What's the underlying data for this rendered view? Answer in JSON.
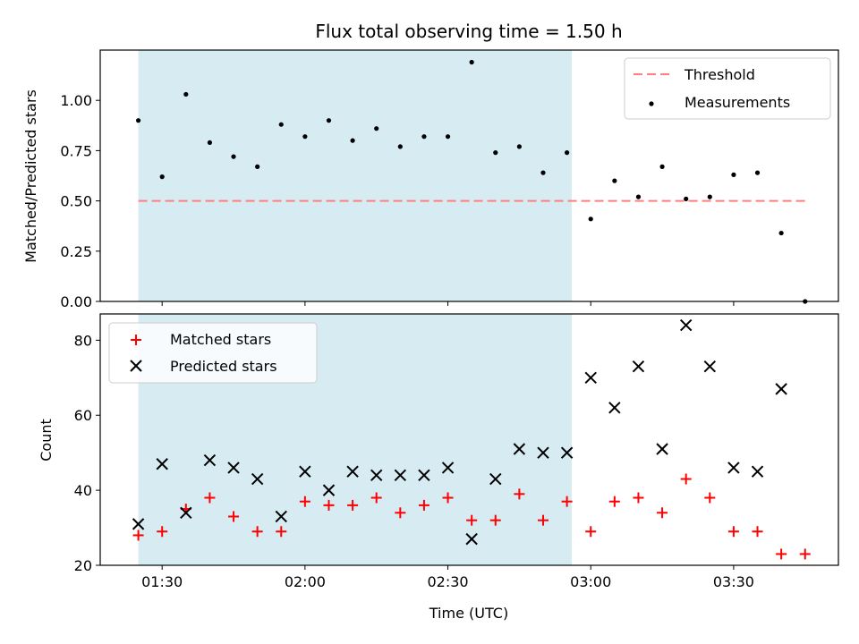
{
  "chart_data": [
    {
      "type": "scatter",
      "title": "Flux total observing time = 1.50 h",
      "xlabel": "",
      "ylabel": "Matched/Predicted stars",
      "ylim": [
        0,
        1.25
      ],
      "yticks": [
        "0.00",
        "0.25",
        "0.50",
        "0.75",
        "1.00"
      ],
      "shaded_region": {
        "start": "01:25",
        "end": "02:56",
        "color": "#add8e6"
      },
      "threshold": {
        "name": "Threshold",
        "value": 0.5,
        "x_start": "01:25",
        "x_end": "03:45",
        "color": "#ff7f7f",
        "style": "dashed"
      },
      "series": [
        {
          "name": "Measurements",
          "marker": "dot",
          "color": "#000000",
          "x": [
            "01:25",
            "01:30",
            "01:35",
            "01:40",
            "01:45",
            "01:50",
            "01:55",
            "02:00",
            "02:05",
            "02:10",
            "02:15",
            "02:20",
            "02:25",
            "02:30",
            "02:35",
            "02:40",
            "02:45",
            "02:50",
            "02:55",
            "03:00",
            "03:05",
            "03:10",
            "03:15",
            "03:20",
            "03:25",
            "03:30",
            "03:35",
            "03:40",
            "03:45"
          ],
          "y": [
            0.9,
            0.62,
            1.03,
            0.79,
            0.72,
            0.67,
            0.88,
            0.82,
            0.9,
            0.8,
            0.86,
            0.77,
            0.82,
            0.82,
            1.19,
            0.74,
            0.77,
            0.64,
            0.74,
            0.41,
            0.6,
            0.52,
            0.67,
            0.51,
            0.52,
            0.63,
            0.64,
            0.34,
            0.0
          ]
        }
      ],
      "legend": {
        "position": "top-right"
      }
    },
    {
      "type": "scatter",
      "title": "",
      "xlabel": "Time (UTC)",
      "ylabel": "Count",
      "ylim": [
        20,
        87
      ],
      "yticks": [
        "20",
        "40",
        "60",
        "80"
      ],
      "xlim": [
        "01:17",
        "03:52"
      ],
      "xticks": [
        "01:30",
        "02:00",
        "02:30",
        "03:00",
        "03:30"
      ],
      "shaded_region": {
        "start": "01:25",
        "end": "02:56",
        "color": "#add8e6"
      },
      "series": [
        {
          "name": "Matched stars",
          "marker": "plus",
          "color": "#ff0000",
          "x": [
            "01:25",
            "01:30",
            "01:35",
            "01:40",
            "01:45",
            "01:50",
            "01:55",
            "02:00",
            "02:05",
            "02:10",
            "02:15",
            "02:20",
            "02:25",
            "02:30",
            "02:35",
            "02:40",
            "02:45",
            "02:50",
            "02:55",
            "03:00",
            "03:05",
            "03:10",
            "03:15",
            "03:20",
            "03:25",
            "03:30",
            "03:35",
            "03:40",
            "03:45"
          ],
          "y": [
            28,
            29,
            35,
            38,
            33,
            29,
            29,
            37,
            36,
            36,
            38,
            34,
            36,
            38,
            32,
            32,
            39,
            32,
            37,
            29,
            37,
            38,
            34,
            43,
            38,
            29,
            29,
            23,
            23
          ]
        },
        {
          "name": "Predicted stars",
          "marker": "x",
          "color": "#000000",
          "x": [
            "01:25",
            "01:30",
            "01:35",
            "01:40",
            "01:45",
            "01:50",
            "01:55",
            "02:00",
            "02:05",
            "02:10",
            "02:15",
            "02:20",
            "02:25",
            "02:30",
            "02:35",
            "02:40",
            "02:45",
            "02:50",
            "02:55",
            "03:00",
            "03:05",
            "03:10",
            "03:15",
            "03:20",
            "03:25",
            "03:30",
            "03:35",
            "03:40"
          ],
          "y": [
            31,
            47,
            34,
            48,
            46,
            43,
            33,
            45,
            40,
            45,
            44,
            44,
            44,
            46,
            27,
            43,
            51,
            50,
            50,
            70,
            62,
            73,
            51,
            84,
            73,
            46,
            45,
            67
          ]
        }
      ],
      "legend": {
        "position": "top-left"
      }
    }
  ]
}
